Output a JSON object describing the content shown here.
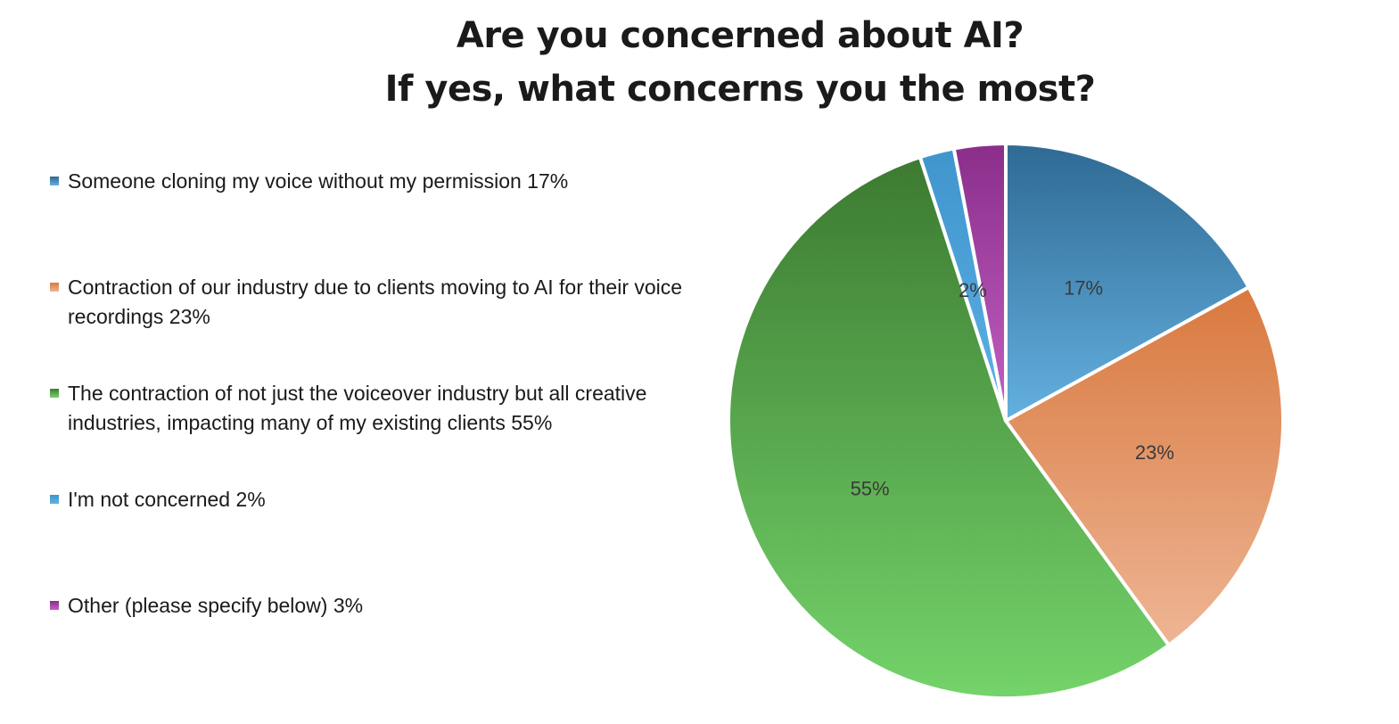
{
  "chart_data": {
    "type": "pie",
    "title": [
      "Are you concerned about AI?",
      "If yes, what concerns you the most?"
    ],
    "legend_position": "left",
    "categories": [
      "Someone cloning my voice without my permission 17%",
      "Contraction of our industry due to clients moving to AI for their voice recordings 23%",
      "The contraction of not just the voiceover industry but all creative industries, impacting many of my existing clients 55%",
      "I'm not concerned 2%",
      "Other (please specify below) 3%"
    ],
    "values": [
      17,
      23,
      55,
      2,
      3
    ],
    "data_labels": [
      "17%",
      "23%",
      "55%",
      "2%",
      ""
    ],
    "colors": [
      {
        "light": "#64b0e0",
        "dark": "#2f6a93"
      },
      {
        "light": "#eeb594",
        "dark": "#d9793f"
      },
      {
        "light": "#74d36a",
        "dark": "#3c7a31"
      },
      {
        "light": "#5cb2e6",
        "dark": "#3f95cc"
      },
      {
        "light": "#c460c4",
        "dark": "#8a2e8a"
      }
    ]
  }
}
